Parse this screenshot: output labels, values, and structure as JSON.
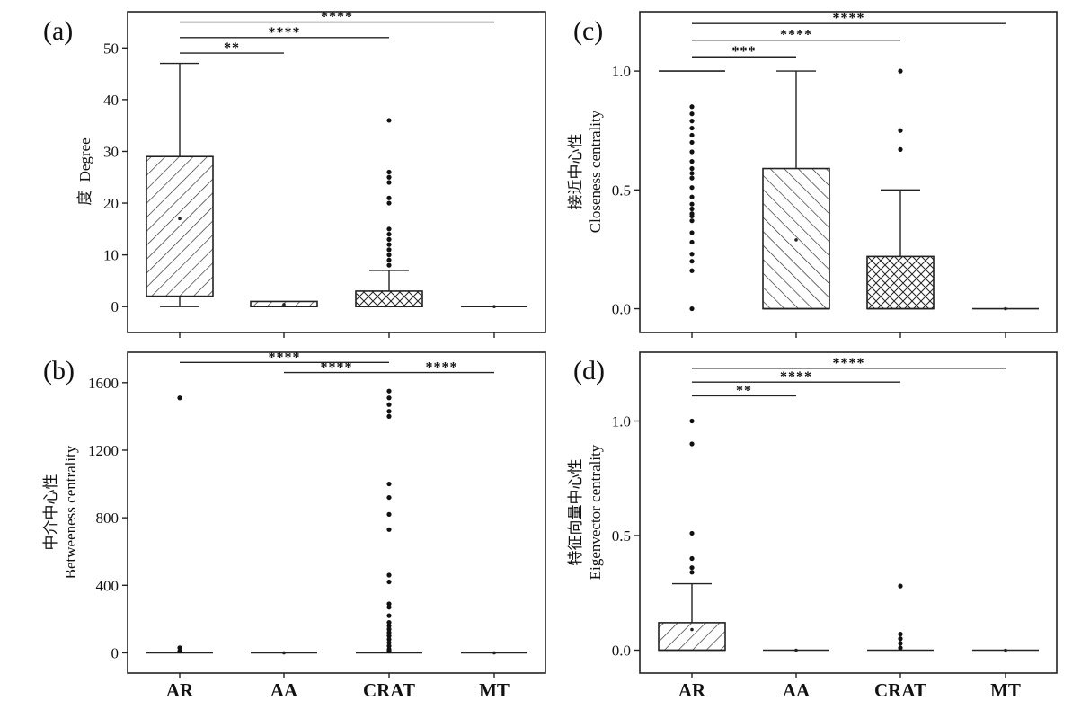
{
  "categories": [
    "AR",
    "AA",
    "CRAT",
    "MT"
  ],
  "chart_data": [
    {
      "type": "box",
      "panel": "(a)",
      "ylabel_cn": "度",
      "ylabel_en": "Degree",
      "ylim": [
        -5,
        57
      ],
      "yticks": [
        0,
        10,
        20,
        30,
        40,
        50
      ],
      "tick_labels": [
        "0",
        "10",
        "20",
        "30",
        "40",
        "50"
      ],
      "boxes": [
        {
          "category": "AR",
          "q1": 2,
          "median": 2,
          "q3": 29,
          "whisker_low": 0,
          "whisker_high": 47,
          "mean": 17,
          "fill": "diag",
          "outliers": []
        },
        {
          "category": "AA",
          "q1": 0,
          "median": 0,
          "q3": 1,
          "whisker_low": 0,
          "whisker_high": 1,
          "mean": 0.4,
          "fill": "diag",
          "outliers": []
        },
        {
          "category": "CRAT",
          "q1": 0,
          "median": 0,
          "q3": 3,
          "whisker_low": 0,
          "whisker_high": 7,
          "mean": null,
          "fill": "cross",
          "outliers": [
            36,
            26,
            25,
            24,
            21,
            20,
            15,
            14,
            13,
            12,
            11,
            10,
            9,
            8
          ]
        },
        {
          "category": "MT",
          "q1": 0,
          "median": 0,
          "q3": 0,
          "whisker_low": 0,
          "whisker_high": 0,
          "mean": 0,
          "fill": "none",
          "outliers": []
        }
      ],
      "significance": [
        {
          "from": "AR",
          "to": "AA",
          "label": "**",
          "y": 49
        },
        {
          "from": "AR",
          "to": "CRAT",
          "label": "****",
          "y": 52
        },
        {
          "from": "AR",
          "to": "MT",
          "label": "****",
          "y": 55
        }
      ]
    },
    {
      "type": "box",
      "panel": "(c)",
      "ylabel_cn": "接近中心性",
      "ylabel_en": "Closeness centrality",
      "ylim": [
        -0.1,
        1.25
      ],
      "yticks": [
        0,
        0.5,
        1.0
      ],
      "tick_labels": [
        "0.0",
        "0.5",
        "1.0"
      ],
      "boxes": [
        {
          "category": "AR",
          "q1": 1.0,
          "median": 1.0,
          "q3": 1.0,
          "whisker_low": 1.0,
          "whisker_high": 1.0,
          "mean": null,
          "fill": "none",
          "outliers": [
            0.85,
            0.82,
            0.79,
            0.76,
            0.73,
            0.7,
            0.66,
            0.62,
            0.59,
            0.57,
            0.55,
            0.51,
            0.47,
            0.44,
            0.42,
            0.4,
            0.39,
            0.37,
            0.32,
            0.28,
            0.23,
            0.2,
            0.16,
            0.0
          ]
        },
        {
          "category": "AA",
          "q1": 0,
          "median": 0,
          "q3": 0.59,
          "whisker_low": 0,
          "whisker_high": 1.0,
          "mean": 0.29,
          "fill": "diag-rev",
          "outliers": []
        },
        {
          "category": "CRAT",
          "q1": 0,
          "median": 0,
          "q3": 0.22,
          "whisker_low": 0,
          "whisker_high": 0.5,
          "mean": null,
          "fill": "cross",
          "outliers": [
            1.0,
            0.75,
            0.67
          ]
        },
        {
          "category": "MT",
          "q1": 0,
          "median": 0,
          "q3": 0,
          "whisker_low": 0,
          "whisker_high": 0,
          "mean": 0,
          "fill": "none",
          "outliers": []
        }
      ],
      "significance": [
        {
          "from": "AR",
          "to": "AA",
          "label": "***",
          "y": 1.06
        },
        {
          "from": "AR",
          "to": "CRAT",
          "label": "****",
          "y": 1.13
        },
        {
          "from": "AR",
          "to": "MT",
          "label": "****",
          "y": 1.2
        }
      ]
    },
    {
      "type": "box",
      "panel": "(b)",
      "ylabel_cn": "中介中心性",
      "ylabel_en": "Betweeness centrality",
      "ylim": [
        -120,
        1780
      ],
      "yticks": [
        0,
        400,
        800,
        1200,
        1600
      ],
      "tick_labels": [
        "0",
        "400",
        "800",
        "1200",
        "1600"
      ],
      "boxes": [
        {
          "category": "AR",
          "q1": 0,
          "median": 0,
          "q3": 0,
          "whisker_low": 0,
          "whisker_high": 0,
          "mean": null,
          "fill": "none",
          "outliers": [
            1510,
            30,
            10
          ]
        },
        {
          "category": "AA",
          "q1": 0,
          "median": 0,
          "q3": 0,
          "whisker_low": 0,
          "whisker_high": 0,
          "mean": 0,
          "fill": "none",
          "outliers": []
        },
        {
          "category": "CRAT",
          "q1": 0,
          "median": 0,
          "q3": 0,
          "whisker_low": 0,
          "whisker_high": 0,
          "mean": null,
          "fill": "none",
          "outliers": [
            1550,
            1510,
            1470,
            1430,
            1400,
            1000,
            920,
            820,
            730,
            460,
            420,
            290,
            270,
            220,
            180,
            160,
            140,
            120,
            100,
            80,
            60,
            40,
            20,
            10
          ]
        },
        {
          "category": "MT",
          "q1": 0,
          "median": 0,
          "q3": 0,
          "whisker_low": 0,
          "whisker_high": 0,
          "mean": 0,
          "fill": "none",
          "outliers": []
        }
      ],
      "significance": [
        {
          "from": "AR",
          "to": "CRAT",
          "label": "****",
          "y": 1720
        },
        {
          "from": "AA",
          "to": "CRAT",
          "label": "****",
          "y": 1660
        },
        {
          "from": "CRAT",
          "to": "MT",
          "label": "****",
          "y": 1660
        }
      ]
    },
    {
      "type": "box",
      "panel": "(d)",
      "ylabel_cn": "特征向量中心性",
      "ylabel_en": "Eigenvector centrality",
      "ylim": [
        -0.1,
        1.3
      ],
      "yticks": [
        0,
        0.5,
        1.0
      ],
      "tick_labels": [
        "0.0",
        "0.5",
        "1.0"
      ],
      "boxes": [
        {
          "category": "AR",
          "q1": 0,
          "median": 0,
          "q3": 0.12,
          "whisker_low": 0,
          "whisker_high": 0.29,
          "mean": 0.09,
          "fill": "diag",
          "outliers": [
            1.0,
            0.9,
            0.51,
            0.4,
            0.36,
            0.34
          ]
        },
        {
          "category": "AA",
          "q1": 0,
          "median": 0,
          "q3": 0,
          "whisker_low": 0,
          "whisker_high": 0,
          "mean": 0,
          "fill": "none",
          "outliers": []
        },
        {
          "category": "CRAT",
          "q1": 0,
          "median": 0,
          "q3": 0,
          "whisker_low": 0,
          "whisker_high": 0,
          "mean": null,
          "fill": "none",
          "outliers": [
            0.28,
            0.07,
            0.05,
            0.03,
            0.01
          ]
        },
        {
          "category": "MT",
          "q1": 0,
          "median": 0,
          "q3": 0,
          "whisker_low": 0,
          "whisker_high": 0,
          "mean": 0,
          "fill": "none",
          "outliers": []
        }
      ],
      "significance": [
        {
          "from": "AR",
          "to": "AA",
          "label": "**",
          "y": 1.11
        },
        {
          "from": "AR",
          "to": "CRAT",
          "label": "****",
          "y": 1.17
        },
        {
          "from": "AR",
          "to": "MT",
          "label": "****",
          "y": 1.23
        }
      ]
    }
  ]
}
